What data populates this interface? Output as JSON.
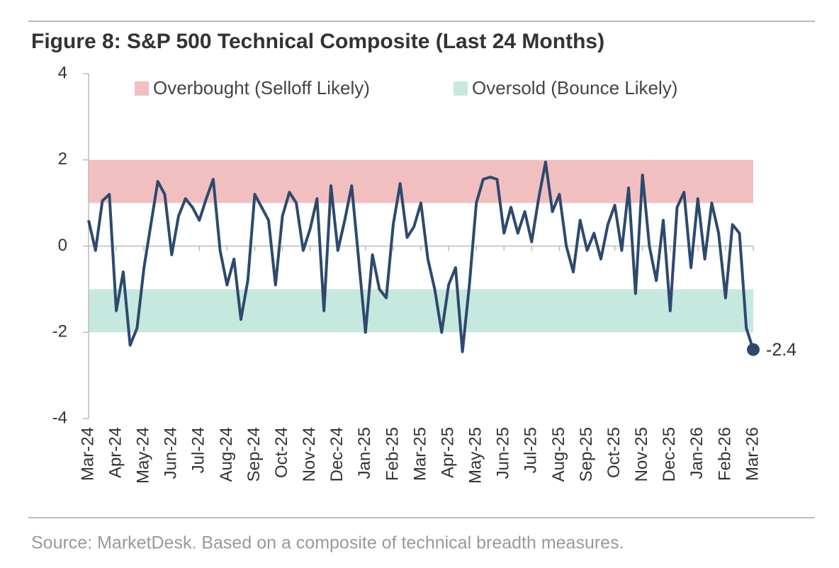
{
  "chart_data": {
    "type": "line",
    "title": "Figure 8: S&P 500 Technical Composite (Last 24 Months)",
    "source": "Source: MarketDesk. Based on a composite of technical breadth measures.",
    "categories": [
      "Mar-24",
      null,
      null,
      null,
      "Apr-24",
      null,
      null,
      null,
      "May-24",
      null,
      null,
      null,
      "Jun-24",
      null,
      null,
      null,
      "Jul-24",
      null,
      null,
      null,
      "Aug-24",
      null,
      null,
      null,
      "Sep-24",
      null,
      null,
      null,
      "Oct-24",
      null,
      null,
      null,
      "Nov-24",
      null,
      null,
      null,
      "Dec-24",
      null,
      null,
      null,
      "Jan-25",
      null,
      null,
      null,
      "Feb-25",
      null,
      null,
      null,
      "Mar-25",
      null,
      null,
      null,
      "Apr-25",
      null,
      null,
      null,
      "May-25",
      null,
      null,
      null,
      "Jun-25",
      null,
      null,
      null,
      "Jul-25",
      null,
      null,
      null,
      "Aug-25",
      null,
      null,
      null,
      "Sep-25",
      null,
      null,
      null,
      "Oct-25",
      null,
      null,
      null,
      "Nov-25",
      null,
      null,
      null,
      "Dec-25",
      null,
      null,
      null,
      "Jan-26",
      null,
      null,
      null,
      "Feb-26",
      null,
      null,
      null,
      "Mar-26"
    ],
    "series": [
      {
        "name": "S&P 500 Technical Composite",
        "color": "#2d4a6e",
        "values": [
          0.6,
          -0.1,
          1.05,
          1.2,
          -1.5,
          -0.6,
          -2.3,
          -1.9,
          -0.5,
          0.5,
          1.5,
          1.2,
          -0.2,
          0.7,
          1.1,
          0.9,
          0.6,
          1.1,
          1.55,
          -0.1,
          -0.9,
          -0.3,
          -1.7,
          -0.8,
          1.2,
          0.9,
          0.6,
          -0.9,
          0.7,
          1.25,
          1.0,
          -0.1,
          0.4,
          1.1,
          -1.5,
          1.4,
          -0.1,
          0.6,
          1.4,
          -0.3,
          -2.0,
          -0.2,
          -1.0,
          -1.2,
          0.5,
          1.45,
          0.2,
          0.45,
          1.0,
          -0.3,
          -1.0,
          -2.0,
          -0.9,
          -0.5,
          -2.45,
          -0.9,
          1.0,
          1.55,
          1.6,
          1.55,
          0.3,
          0.9,
          0.3,
          0.8,
          0.1,
          1.1,
          1.95,
          0.8,
          1.2,
          0.0,
          -0.6,
          0.6,
          -0.1,
          0.3,
          -0.3,
          0.5,
          0.95,
          -0.1,
          1.35,
          -1.1,
          1.65,
          0.0,
          -0.8,
          0.6,
          -1.5,
          0.9,
          1.25,
          -0.5,
          1.1,
          -0.3,
          1.0,
          0.3,
          -1.2,
          0.5,
          0.3,
          -1.9,
          -2.4
        ]
      }
    ],
    "bands": [
      {
        "name": "Overbought (Selloff Likely)",
        "range": [
          1,
          2
        ],
        "color": "#f2bfc1"
      },
      {
        "name": "Oversold (Bounce Likely)",
        "range": [
          -2,
          -1
        ],
        "color": "#c7e8de"
      }
    ],
    "ylim": [
      -4,
      4
    ],
    "yticks": [
      4,
      2,
      0,
      -2,
      -4
    ]
  }
}
